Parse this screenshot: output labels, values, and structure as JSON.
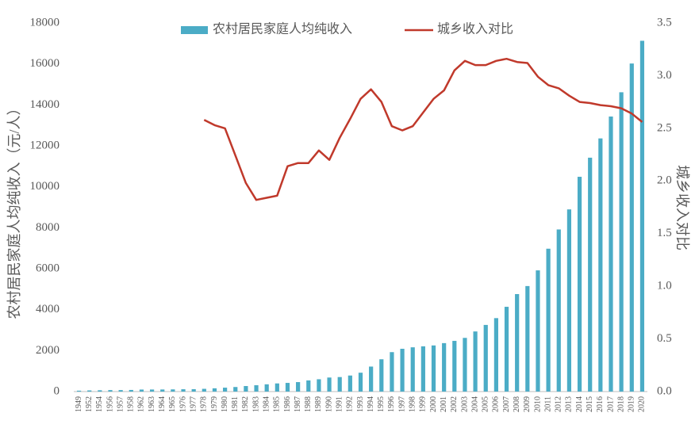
{
  "chart_data": {
    "type": "bar",
    "categories": [
      "1949",
      "1952",
      "1954",
      "1956",
      "1957",
      "1958",
      "1962",
      "1963",
      "1964",
      "1965",
      "1976",
      "1977",
      "1978",
      "1979",
      "1980",
      "1981",
      "1982",
      "1983",
      "1984",
      "1985",
      "1986",
      "1987",
      "1988",
      "1989",
      "1990",
      "1991",
      "1992",
      "1993",
      "1994",
      "1995",
      "1996",
      "1997",
      "1998",
      "1999",
      "2000",
      "2001",
      "2002",
      "2003",
      "2004",
      "2005",
      "2006",
      "2007",
      "2008",
      "2009",
      "2010",
      "2011",
      "2012",
      "2013",
      "2014",
      "2015",
      "2016",
      "2017",
      "2018",
      "2019",
      "2020"
    ],
    "series": [
      {
        "name": "农村居民家庭人均纯收入",
        "type": "bar",
        "color": "#4bacc6",
        "values": [
          44,
          57,
          64,
          73,
          73,
          80,
          99,
          101,
          102,
          107,
          114,
          117,
          134,
          160,
          191,
          223,
          270,
          310,
          355,
          398,
          424,
          463,
          545,
          602,
          686,
          709,
          784,
          922,
          1221,
          1578,
          1926,
          2090,
          2162,
          2210,
          2253,
          2366,
          2476,
          2622,
          2936,
          3255,
          3587,
          4140,
          4761,
          5153,
          5919,
          6977,
          7917,
          8896,
          10489,
          11422,
          12363,
          13432,
          14617,
          16021,
          17131
        ]
      },
      {
        "name": "城乡收入对比",
        "type": "line",
        "axis": "y2",
        "color": "#c0392b",
        "values": [
          null,
          null,
          null,
          null,
          null,
          null,
          null,
          null,
          null,
          null,
          null,
          null,
          2.58,
          2.53,
          2.5,
          2.24,
          1.98,
          1.82,
          1.84,
          1.86,
          2.14,
          2.17,
          2.17,
          2.29,
          2.2,
          2.41,
          2.59,
          2.78,
          2.87,
          2.75,
          2.52,
          2.48,
          2.52,
          2.65,
          2.78,
          2.86,
          3.05,
          3.14,
          3.1,
          3.1,
          3.14,
          3.16,
          3.13,
          3.12,
          2.99,
          2.91,
          2.88,
          2.81,
          2.75,
          2.74,
          2.72,
          2.71,
          2.69,
          2.64,
          2.56
        ]
      }
    ],
    "y_label": "农村居民家庭人均纯收入（元/人）",
    "y2_label": "城乡收入对比",
    "ylim": [
      0,
      18000
    ],
    "yticks": [
      0,
      2000,
      4000,
      6000,
      8000,
      10000,
      12000,
      14000,
      16000,
      18000
    ],
    "y2lim": [
      0,
      3.5
    ],
    "y2ticks": [
      {
        "value": 0,
        "label": "0.0"
      },
      0.5,
      {
        "value": 1,
        "label": "1.0"
      },
      1.5,
      {
        "value": 2,
        "label": "2.0"
      },
      2.5,
      {
        "value": 3,
        "label": "3.0"
      },
      3.5
    ],
    "legend": "top"
  }
}
